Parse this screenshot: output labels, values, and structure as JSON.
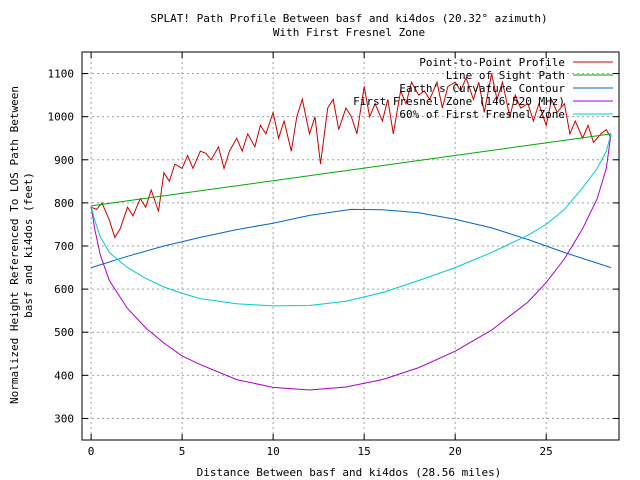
{
  "chart_data": {
    "type": "line",
    "title": "SPLAT! Path Profile Between basf and ki4dos (20.32° azimuth)",
    "subtitle": "With First Fresnel Zone",
    "xlabel": "Distance Between basf and ki4dos (28.56 miles)",
    "ylabel_line1": "Normalized Height Referenced To LOS Path Between",
    "ylabel_line2": "basf and ki4dos (feet)",
    "xlim": [
      -0.5,
      29
    ],
    "ylim": [
      250,
      1150
    ],
    "xticks": [
      0,
      5,
      10,
      15,
      20,
      25
    ],
    "yticks": [
      300,
      400,
      500,
      600,
      700,
      800,
      900,
      1000,
      1100
    ],
    "grid": true,
    "legend_position": "top-right",
    "series": [
      {
        "name": "Point-to-Point Profile",
        "color": "#cc0000",
        "x": [
          0,
          0.3,
          0.6,
          1.0,
          1.3,
          1.6,
          2.0,
          2.3,
          2.7,
          3.0,
          3.3,
          3.7,
          4.0,
          4.3,
          4.6,
          5.0,
          5.3,
          5.6,
          6.0,
          6.3,
          6.6,
          7.0,
          7.3,
          7.6,
          8.0,
          8.3,
          8.6,
          9.0,
          9.3,
          9.6,
          10.0,
          10.3,
          10.6,
          11.0,
          11.3,
          11.6,
          12.0,
          12.3,
          12.6,
          13.0,
          13.3,
          13.6,
          14.0,
          14.3,
          14.6,
          15.0,
          15.3,
          15.6,
          16.0,
          16.3,
          16.6,
          17.0,
          17.3,
          17.6,
          18.0,
          18.3,
          18.6,
          19.0,
          19.3,
          19.6,
          20.0,
          20.3,
          20.6,
          21.0,
          21.3,
          21.6,
          22.0,
          22.3,
          22.6,
          23.0,
          23.3,
          23.6,
          24.0,
          24.3,
          24.6,
          25.0,
          25.3,
          25.6,
          26.0,
          26.3,
          26.6,
          27.0,
          27.3,
          27.6,
          28.0,
          28.3,
          28.56
        ],
        "values": [
          790,
          785,
          800,
          760,
          720,
          740,
          790,
          770,
          810,
          790,
          830,
          780,
          870,
          850,
          890,
          880,
          910,
          880,
          920,
          915,
          900,
          930,
          880,
          920,
          950,
          920,
          960,
          930,
          980,
          960,
          1010,
          950,
          990,
          920,
          1000,
          1040,
          960,
          1000,
          890,
          1020,
          1040,
          970,
          1020,
          1000,
          960,
          1070,
          1000,
          1030,
          990,
          1040,
          960,
          1060,
          1030,
          1080,
          1050,
          1060,
          1040,
          1080,
          1020,
          1070,
          1080,
          1060,
          1090,
          1040,
          1080,
          1010,
          1100,
          1040,
          1080,
          1000,
          1050,
          1020,
          1030,
          990,
          1030,
          980,
          1040,
          1010,
          1030,
          960,
          990,
          950,
          980,
          940,
          960,
          970,
          950
        ]
      },
      {
        "name": "Line of Sight Path",
        "color": "#00aa00",
        "x": [
          0,
          28.56
        ],
        "values": [
          793,
          960
        ]
      },
      {
        "name": "Earth's Curvature Contour",
        "color": "#0066cc",
        "x": [
          0,
          2,
          4,
          6,
          8,
          10,
          12,
          14.28,
          16,
          18,
          20,
          22,
          24,
          26,
          28.56
        ],
        "values": [
          650,
          676,
          700,
          720,
          738,
          753,
          771,
          785,
          784,
          777,
          762,
          742,
          715,
          685,
          650
        ]
      },
      {
        "name": "First Fresnel Zone (146.520 MHz)",
        "color": "#aa00cc",
        "x": [
          0,
          0.2,
          0.5,
          1,
          2,
          3,
          4,
          5,
          6,
          8,
          10,
          12,
          14,
          16,
          18,
          20,
          22,
          24,
          25,
          26,
          27,
          27.8,
          28.3,
          28.56
        ],
        "values": [
          793,
          740,
          680,
          620,
          555,
          510,
          475,
          445,
          425,
          390,
          372,
          366,
          373,
          390,
          418,
          456,
          505,
          570,
          615,
          670,
          740,
          810,
          880,
          960
        ]
      },
      {
        "name": "60% of First Fresnel Zone",
        "color": "#00cccc",
        "x": [
          0,
          0.2,
          0.5,
          1,
          2,
          3,
          4,
          5,
          6,
          8,
          10,
          12,
          14,
          16,
          18,
          20,
          22,
          24,
          25,
          26,
          27,
          27.8,
          28.3,
          28.56
        ],
        "values": [
          793,
          760,
          722,
          685,
          650,
          625,
          605,
          590,
          578,
          566,
          561,
          562,
          572,
          592,
          620,
          650,
          685,
          725,
          750,
          785,
          835,
          880,
          920,
          960
        ]
      }
    ]
  }
}
